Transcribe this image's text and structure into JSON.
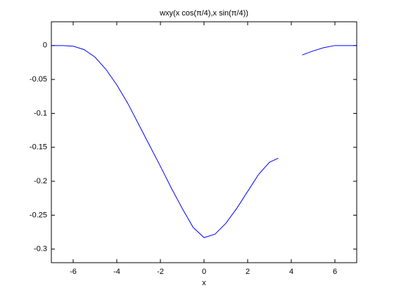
{
  "chart_data": {
    "type": "line",
    "title": "wxy(x cos(π/4),x sin(π/4))",
    "x_label": "x",
    "x": [
      -7,
      -6.5,
      -6,
      -5.5,
      -5,
      -4.5,
      -4,
      -3.5,
      -3,
      -2.5,
      -2,
      -1.5,
      -1,
      -0.5,
      0,
      0.5,
      1,
      1.5,
      2,
      2.5,
      3,
      3.4,
      4,
      4.5,
      5,
      5.5,
      6,
      6.5,
      7
    ],
    "series": [
      {
        "color": "#0000ff",
        "values": [
          0,
          0,
          -0.001,
          -0.006,
          -0.017,
          -0.035,
          -0.058,
          -0.085,
          -0.116,
          -0.147,
          -0.178,
          -0.21,
          -0.24,
          -0.268,
          -0.283,
          -0.278,
          -0.262,
          -0.24,
          -0.215,
          -0.19,
          -0.172,
          -0.166,
          null,
          -0.014,
          -0.008,
          -0.003,
          0,
          0,
          0
        ]
      }
    ],
    "xlim": [
      -7,
      7
    ],
    "ylim": [
      -0.32,
      0.035
    ],
    "xticks": [
      -6,
      -4,
      -2,
      0,
      2,
      4,
      6
    ],
    "yticks": [
      -0.3,
      -0.25,
      -0.2,
      -0.15,
      -0.1,
      -0.05,
      0
    ],
    "grid": false
  }
}
